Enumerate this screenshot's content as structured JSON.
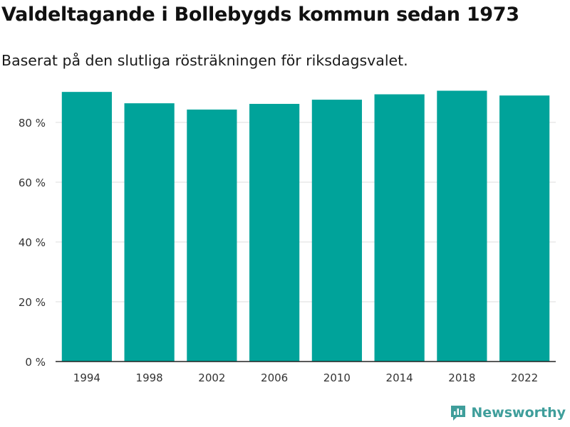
{
  "title": "Valdeltagande i Bollebygds kommun sedan 1973",
  "subtitle": "Baserat på den slutliga rösträkningen för riksdagsvalet.",
  "brand": {
    "name": "Newsworthy",
    "color": "#3f9e9b"
  },
  "colors": {
    "bar": "#00a39a",
    "grid": "#dddddd",
    "axis": "#222222",
    "tick_text": "#333333"
  },
  "chart_data": {
    "type": "bar",
    "categories": [
      "1994",
      "1998",
      "2002",
      "2006",
      "2010",
      "2014",
      "2018",
      "2022"
    ],
    "values": [
      90.2,
      86.4,
      84.3,
      86.2,
      87.6,
      89.4,
      90.6,
      89.0
    ],
    "ylim": [
      0,
      100
    ],
    "yticks": [
      0,
      20,
      40,
      60,
      80
    ],
    "ytick_labels": [
      "0 %",
      "20 %",
      "40 %",
      "60 %",
      "80 %"
    ],
    "xlabel": "",
    "ylabel": "",
    "grid": true,
    "legend": "none"
  }
}
